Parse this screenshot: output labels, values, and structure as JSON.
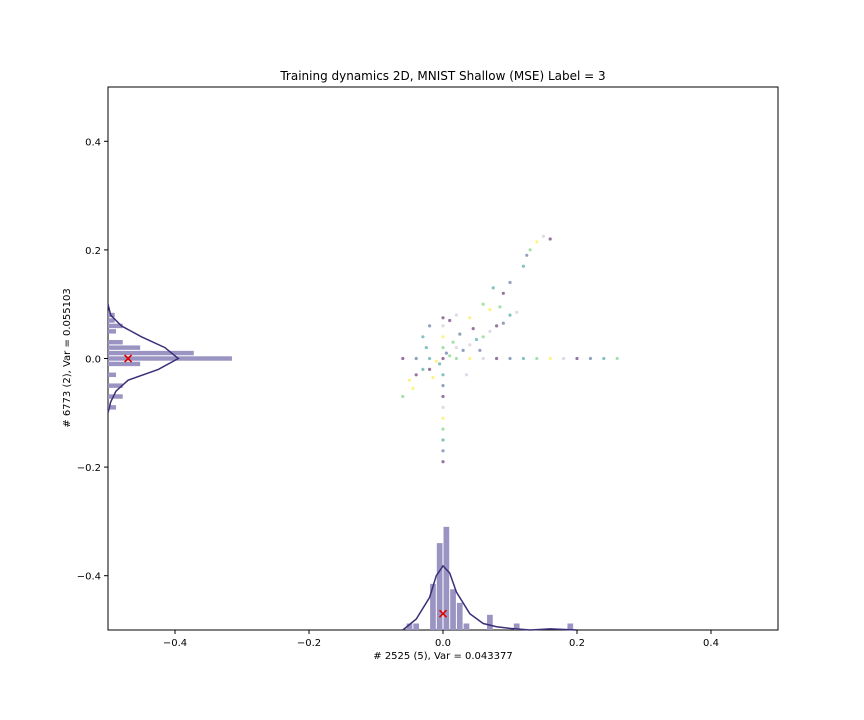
{
  "chart_data": {
    "type": "scatter",
    "title": "Training dynamics 2D, MNIST Shallow (MSE) Label = 3",
    "xlabel": "# 2525 (5), Var = 0.043377",
    "ylabel": "# 6773 (2), Var = 0.055103",
    "xlim": [
      -0.5,
      0.5
    ],
    "ylim": [
      -0.5,
      0.5
    ],
    "x_ticks": [
      -0.4,
      -0.2,
      0.0,
      0.2,
      0.4
    ],
    "x_tick_labels": [
      "−0.4",
      "−0.2",
      "0.0",
      "0.2",
      "0.4"
    ],
    "y_ticks": [
      -0.4,
      -0.2,
      0.0,
      0.2,
      0.4
    ],
    "y_tick_labels": [
      "−0.4",
      "−0.2",
      "0.0",
      "0.2",
      "0.4"
    ],
    "grid": false,
    "marker": {
      "x": 0.0,
      "y": 0.0,
      "symbol": "x",
      "color": "#e00000"
    },
    "colors": {
      "histogram": "#9a94c2",
      "kde": "#3b2f78",
      "scatter_palette": [
        "#440154",
        "#3b528b",
        "#21918c",
        "#5ec962",
        "#fde725",
        "#c7b9d6"
      ]
    },
    "series": [
      {
        "kind": "scatter-cluster",
        "points": [
          {
            "x": 0.0,
            "y": 0.0
          },
          {
            "x": 0.005,
            "y": 0.01
          },
          {
            "x": -0.005,
            "y": -0.01
          },
          {
            "x": 0.01,
            "y": 0.005
          },
          {
            "x": -0.01,
            "y": -0.005
          },
          {
            "x": 0.02,
            "y": 0.02
          },
          {
            "x": -0.02,
            "y": -0.02
          },
          {
            "x": 0.03,
            "y": 0.015
          },
          {
            "x": -0.03,
            "y": -0.02
          },
          {
            "x": 0.015,
            "y": 0.03
          },
          {
            "x": -0.015,
            "y": -0.035
          },
          {
            "x": 0.04,
            "y": 0.025
          },
          {
            "x": -0.04,
            "y": -0.03
          },
          {
            "x": 0.025,
            "y": 0.045
          },
          {
            "x": 0.05,
            "y": 0.035
          },
          {
            "x": 0.06,
            "y": 0.04
          },
          {
            "x": -0.05,
            "y": -0.04
          },
          {
            "x": 0.07,
            "y": 0.05
          },
          {
            "x": 0.08,
            "y": 0.06
          },
          {
            "x": 0.09,
            "y": 0.065
          },
          {
            "x": 0.1,
            "y": 0.08
          },
          {
            "x": 0.085,
            "y": 0.095
          },
          {
            "x": 0.07,
            "y": 0.09
          },
          {
            "x": 0.11,
            "y": 0.085
          },
          {
            "x": 0.09,
            "y": 0.12
          },
          {
            "x": 0.1,
            "y": 0.14
          },
          {
            "x": 0.12,
            "y": 0.17
          },
          {
            "x": 0.13,
            "y": 0.2
          },
          {
            "x": 0.14,
            "y": 0.215
          },
          {
            "x": 0.15,
            "y": 0.225
          },
          {
            "x": 0.16,
            "y": 0.22
          },
          {
            "x": 0.125,
            "y": 0.19
          },
          {
            "x": 0.075,
            "y": 0.13
          },
          {
            "x": 0.06,
            "y": 0.1
          },
          {
            "x": 0.04,
            "y": 0.075
          },
          {
            "x": 0.02,
            "y": 0.08
          },
          {
            "x": 0.01,
            "y": 0.07
          },
          {
            "x": -0.02,
            "y": 0.06
          },
          {
            "x": -0.03,
            "y": 0.04
          },
          {
            "x": -0.06,
            "y": -0.07
          },
          {
            "x": -0.045,
            "y": -0.055
          },
          {
            "x": 0.035,
            "y": -0.03
          },
          {
            "x": 0.045,
            "y": 0.055
          },
          {
            "x": 0.055,
            "y": 0.015
          },
          {
            "x": -0.025,
            "y": 0.02
          }
        ]
      },
      {
        "kind": "horizontal-spread",
        "points": [
          {
            "x": -0.06,
            "y": 0.0
          },
          {
            "x": -0.04,
            "y": 0.0
          },
          {
            "x": -0.02,
            "y": 0.0
          },
          {
            "x": 0.02,
            "y": 0.0
          },
          {
            "x": 0.04,
            "y": 0.0
          },
          {
            "x": 0.06,
            "y": 0.0
          },
          {
            "x": 0.08,
            "y": 0.0
          },
          {
            "x": 0.1,
            "y": 0.0
          },
          {
            "x": 0.12,
            "y": 0.0
          },
          {
            "x": 0.14,
            "y": 0.0
          },
          {
            "x": 0.16,
            "y": 0.0
          },
          {
            "x": 0.18,
            "y": 0.0
          },
          {
            "x": 0.2,
            "y": 0.0
          },
          {
            "x": 0.22,
            "y": 0.0
          },
          {
            "x": 0.24,
            "y": 0.0
          },
          {
            "x": 0.26,
            "y": 0.0
          }
        ]
      },
      {
        "kind": "vertical-spread",
        "points": [
          {
            "x": 0.0,
            "y": -0.19
          },
          {
            "x": 0.0,
            "y": -0.17
          },
          {
            "x": 0.0,
            "y": -0.15
          },
          {
            "x": 0.0,
            "y": -0.13
          },
          {
            "x": 0.0,
            "y": -0.11
          },
          {
            "x": 0.0,
            "y": -0.09
          },
          {
            "x": 0.0,
            "y": -0.07
          },
          {
            "x": 0.0,
            "y": -0.05
          },
          {
            "x": 0.0,
            "y": -0.03
          },
          {
            "x": 0.0,
            "y": 0.02
          },
          {
            "x": 0.0,
            "y": 0.04
          },
          {
            "x": 0.0,
            "y": 0.06
          },
          {
            "x": 0.0,
            "y": 0.075
          }
        ]
      }
    ],
    "x_histogram": {
      "bin_width": 0.01,
      "bins": [
        {
          "center": -0.05,
          "count": 0.012
        },
        {
          "center": -0.04,
          "count": 0.012
        },
        {
          "center": -0.015,
          "count": 0.085
        },
        {
          "center": -0.005,
          "count": 0.16
        },
        {
          "center": 0.005,
          "count": 0.19
        },
        {
          "center": 0.015,
          "count": 0.075
        },
        {
          "center": 0.025,
          "count": 0.05
        },
        {
          "center": 0.035,
          "count": 0.012
        },
        {
          "center": 0.07,
          "count": 0.028
        },
        {
          "center": 0.11,
          "count": 0.012
        },
        {
          "center": 0.19,
          "count": 0.012
        }
      ],
      "kde": [
        [
          -0.06,
          0.0
        ],
        [
          -0.04,
          0.02
        ],
        [
          -0.02,
          0.06
        ],
        [
          -0.01,
          0.1
        ],
        [
          0.0,
          0.118
        ],
        [
          0.01,
          0.105
        ],
        [
          0.02,
          0.07
        ],
        [
          0.04,
          0.03
        ],
        [
          0.06,
          0.012
        ],
        [
          0.08,
          0.006
        ],
        [
          0.1,
          0.003
        ],
        [
          0.13,
          0.0
        ],
        [
          0.16,
          0.002
        ],
        [
          0.2,
          0.0
        ]
      ]
    },
    "y_histogram": {
      "bin_width": 0.01,
      "bins": [
        {
          "center": 0.08,
          "count": 0.01
        },
        {
          "center": 0.07,
          "count": 0.01
        },
        {
          "center": 0.06,
          "count": 0.022
        },
        {
          "center": 0.05,
          "count": 0.012
        },
        {
          "center": 0.03,
          "count": 0.022
        },
        {
          "center": 0.02,
          "count": 0.048
        },
        {
          "center": 0.01,
          "count": 0.128
        },
        {
          "center": 0.0,
          "count": 0.185
        },
        {
          "center": -0.01,
          "count": 0.048
        },
        {
          "center": -0.03,
          "count": 0.012
        },
        {
          "center": -0.05,
          "count": 0.022
        },
        {
          "center": -0.07,
          "count": 0.022
        },
        {
          "center": -0.09,
          "count": 0.012
        }
      ],
      "kde": [
        [
          0.1,
          0.0
        ],
        [
          0.08,
          0.004
        ],
        [
          0.06,
          0.02
        ],
        [
          0.04,
          0.05
        ],
        [
          0.02,
          0.085
        ],
        [
          0.0,
          0.105
        ],
        [
          -0.02,
          0.075
        ],
        [
          -0.04,
          0.03
        ],
        [
          -0.06,
          0.012
        ],
        [
          -0.08,
          0.004
        ],
        [
          -0.1,
          0.0
        ]
      ]
    },
    "marker_panels": [
      {
        "x": 0.0,
        "y": -0.47
      },
      {
        "x": -0.47,
        "y": 0.0
      }
    ]
  }
}
